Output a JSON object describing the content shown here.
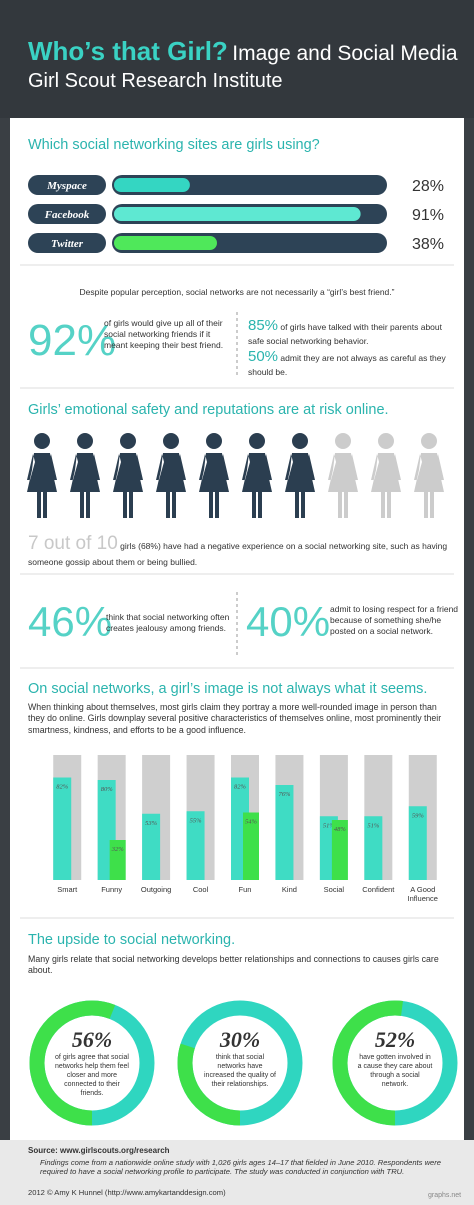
{
  "header": {
    "title_accent": "Who’s that Girl?",
    "title_rest": "Image and Social Media",
    "subtitle": "Girl Scout Research Institute"
  },
  "chart_data": [
    {
      "type": "hbar",
      "title": "Which social networking sites are girls using?",
      "categories": [
        "Myspace",
        "Facebook",
        "Twitter"
      ],
      "values": [
        28,
        91,
        38
      ],
      "value_labels": [
        "28%",
        "91%",
        "38%"
      ],
      "colors": [
        "#34d6c2",
        "#5ee8d2",
        "#4fe85a"
      ],
      "xlim": [
        0,
        100
      ]
    },
    {
      "type": "pictogram",
      "title": "Girls’ emotional safety and reputations are at risk online.",
      "value": 7,
      "total": 10,
      "value_label": "7 out of 10",
      "colors": [
        "#2b3e50",
        "#cccccc"
      ]
    },
    {
      "type": "bar",
      "title": "On social networks, a girl’s image is not always what it seems.",
      "subtitle": "When thinking about themselves, most girls claim they portray a more well-rounded image in person than they do online. Girls downplay several positive characteristics of themselves online, most prominently their smartness, kindness, and efforts to be a good influence.",
      "categories": [
        "Smart",
        "Funny",
        "Outgoing",
        "Cool",
        "Fun",
        "Kind",
        "Social",
        "Confident",
        "A Good Influence"
      ],
      "series": [
        {
          "color": "#3fdcc4",
          "values": [
            82,
            80,
            53,
            55,
            82,
            76,
            51,
            51,
            59
          ],
          "value_labels": [
            "82%",
            "80%",
            "53%",
            "55%",
            "82%",
            "76%",
            "51%",
            "51%",
            "59%"
          ]
        },
        {
          "color": "#3ee04a",
          "values": [
            null,
            32,
            null,
            null,
            54,
            null,
            48,
            null,
            null
          ],
          "value_labels": [
            null,
            "32%",
            null,
            null,
            "54%",
            null,
            "48%",
            null,
            null
          ]
        }
      ],
      "ylim": [
        0,
        100
      ],
      "track_color": "#cfcfcf"
    },
    {
      "type": "donut",
      "title": "The upside to social networking.",
      "subtitle": "Many girls relate that social networking develops better relationships and connections to causes girls care about.",
      "values": [
        56,
        30,
        52
      ],
      "value_labels": [
        "56%",
        "30%",
        "52%"
      ],
      "captions": [
        "of girls agree that social networks help them feel closer and more connected to their friends.",
        "think that social networks have increased the quality of their relationships.",
        "have gotten involved in a cause they care about through a social network."
      ],
      "colors": [
        "#3ee04a",
        "#2fd6c0"
      ]
    }
  ],
  "stats": {
    "caption": "Despite popular perception, social networks are not necessarily a “girl’s best friend.”",
    "main": {
      "value": "92%",
      "text": "of girls would give up all of their social networking friends if it meant keeping their best friend."
    },
    "side": [
      {
        "value": "85%",
        "text": "of girls have talked with their parents about safe social networking behavior."
      },
      {
        "value": "50%",
        "text": "admit they are not always as careful as they should be."
      }
    ],
    "pictogram_text": "girls (68%) have had a negative experience on a social networking site, such as having someone gossip about them or being bullied.",
    "bottom": [
      {
        "value": "46%",
        "text": "think that social networking often creates jealousy among friends."
      },
      {
        "value": "40%",
        "text": "admit to losing respect for a friend because of something she/he posted on a social network."
      }
    ]
  },
  "footer": {
    "source": "Source: www.girlscouts.org/research",
    "findings": "Findings come from a nationwide online study with 1,026 girls ages 14–17 that fielded in June 2010. Respondents were required to have a social networking profile to participate. The study was conducted in conjunction with TRU.",
    "copyright": "2012 © Amy K Hunnel  (http://www.amykartanddesign.com)",
    "credit": "graphs.net"
  }
}
